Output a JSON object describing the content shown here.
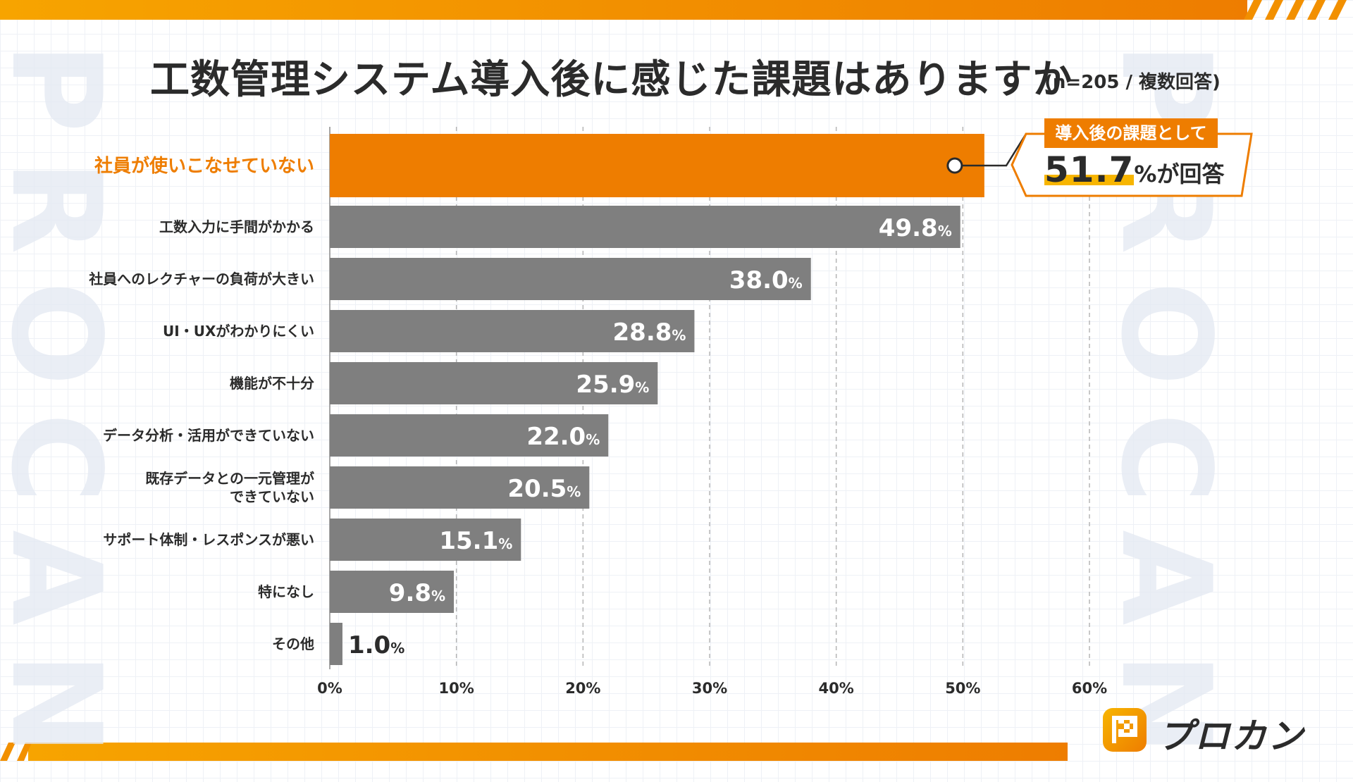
{
  "header": {
    "title": "工数管理システム導入後に感じた課題はありますか",
    "note": "(n=205 / 複数回答)"
  },
  "watermark": {
    "text": "PROCAN"
  },
  "callout": {
    "tag": "導入後の課題として",
    "value": "51.7",
    "suffix": "%が回答"
  },
  "logo": {
    "text": "プロカン"
  },
  "colors": {
    "highlight": "#ee7d00",
    "bar": "#7f7f7f",
    "grid": "#b5b5b5",
    "text": "#2b2b2b",
    "band": "#f29000"
  },
  "chart_data": {
    "type": "bar",
    "orientation": "horizontal",
    "categories": [
      "社員が使いこなせていない",
      "工数入力に手間がかかる",
      "社員へのレクチャーの負荷が大きい",
      "UI・UXがわかりにくい",
      "機能が不十分",
      "データ分析・活用ができていない",
      "既存データとの一元管理が\nできていない",
      "サポート体制・レスポンスが悪い",
      "特になし",
      "その他"
    ],
    "values": [
      51.7,
      49.8,
      38.0,
      28.8,
      25.9,
      22.0,
      20.5,
      15.1,
      9.8,
      1.0
    ],
    "value_labels": [
      "",
      "49.8",
      "38.0",
      "28.8",
      "25.9",
      "22.0",
      "20.5",
      "15.1",
      "9.8",
      "1.0"
    ],
    "value_suffix": "%",
    "highlight_index": 0,
    "xlim": [
      0,
      60
    ],
    "ticks": [
      0,
      10,
      20,
      30,
      40,
      50,
      60
    ],
    "tick_labels": [
      "0%",
      "10%",
      "20%",
      "30%",
      "40%",
      "50%",
      "60%"
    ],
    "grid": "vertical dashed",
    "legend": "none"
  }
}
